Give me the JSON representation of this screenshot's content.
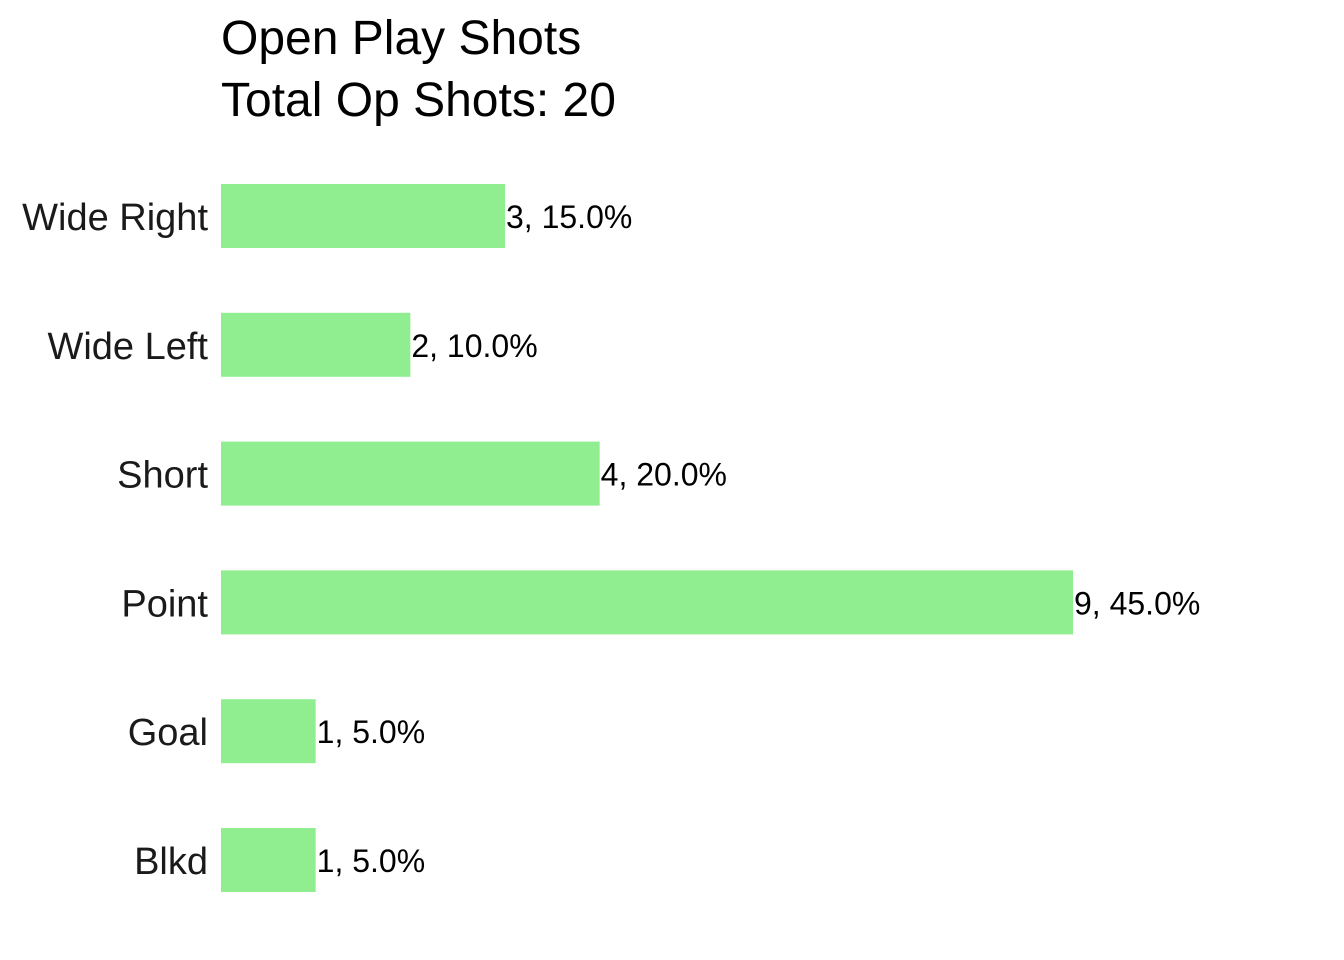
{
  "chart_data": {
    "type": "bar",
    "orientation": "horizontal",
    "title": "Open Play Shots",
    "subtitle": "Total Op Shots: 20",
    "categories": [
      "Wide Right",
      "Wide Left",
      "Short",
      "Point",
      "Goal",
      "Blkd"
    ],
    "values": [
      3,
      2,
      4,
      9,
      1,
      1
    ],
    "data_labels": [
      "3, 15.0%",
      "2, 10.0%",
      "4, 20.0%",
      "9, 45.0%",
      "1, 5.0%",
      "1, 5.0%"
    ],
    "xlim": [
      0,
      9
    ],
    "bar_color": "#90EE90",
    "grid": false,
    "axes_visible": false,
    "legend": "none"
  }
}
